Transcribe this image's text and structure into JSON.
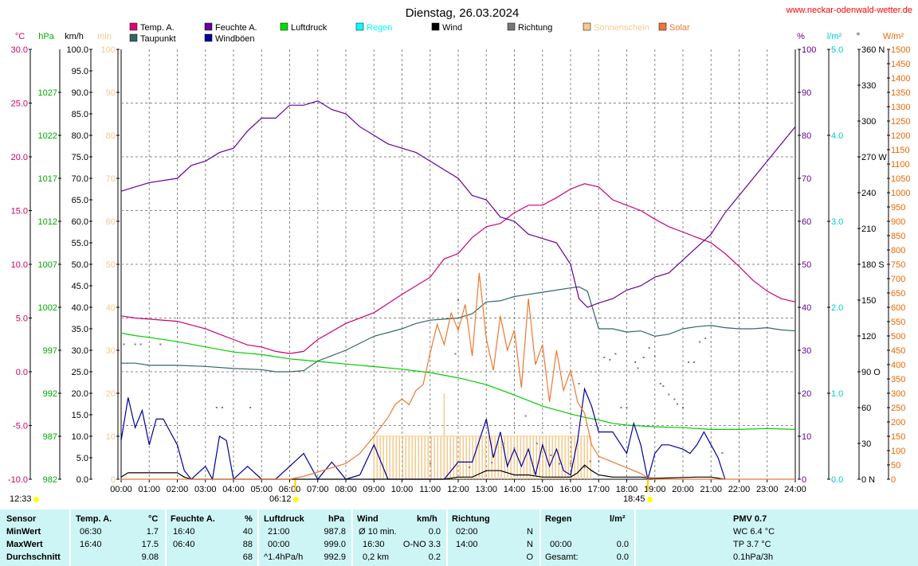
{
  "site": "www.neckar-odenwald-wetter.de",
  "chart_data": {
    "type": "line",
    "title": "Dienstag, 26.03.2024",
    "x_ticks": [
      "00:00",
      "01:00",
      "02:00",
      "03:00",
      "04:00",
      "05:00",
      "06:00",
      "07:00",
      "08:00",
      "09:00",
      "10:00",
      "11:00",
      "12:00",
      "13:00",
      "14:00",
      "15:00",
      "16:00",
      "17:00",
      "18:00",
      "19:00",
      "20:00",
      "21:00",
      "22:00",
      "23:00",
      "24:00"
    ],
    "axes": {
      "temp": {
        "unit": "°C",
        "color": "#cc0066",
        "ticks": [
          "30.0",
          "25.0",
          "20.0",
          "15.0",
          "10.0",
          "5.0",
          "0.0",
          "-5.0",
          "-10.0"
        ],
        "range": [
          -10,
          30
        ]
      },
      "pressure": {
        "unit": "hPa",
        "color": "#00aa00",
        "ticks": [
          "1027",
          "1022",
          "1017",
          "1012",
          "1007",
          "1002",
          "997",
          "992",
          "987",
          "982"
        ],
        "range": [
          982,
          1032
        ]
      },
      "wind": {
        "unit": "km/h",
        "color": "#000000",
        "ticks": [
          "100.0",
          "95.0",
          "90.0",
          "85.0",
          "80.0",
          "75.0",
          "70.0",
          "65.0",
          "60.0",
          "55.0",
          "50.0",
          "45.0",
          "40.0",
          "35.0",
          "30.0",
          "25.0",
          "20.0",
          "15.0",
          "10.0",
          "5.0",
          "0.0"
        ],
        "range": [
          0,
          100
        ]
      },
      "sunshine": {
        "unit": "min",
        "color": "#f5c98a",
        "ticks": [
          "100",
          "90",
          "80",
          "70",
          "60",
          "50",
          "40",
          "30",
          "20",
          "10",
          "0"
        ],
        "range": [
          0,
          100
        ]
      },
      "humidity": {
        "unit": "%",
        "color": "#660099",
        "ticks": [
          "100",
          "90",
          "80",
          "70",
          "60",
          "50",
          "40",
          "30",
          "20",
          "10",
          "0"
        ],
        "range": [
          0,
          100
        ]
      },
      "rain": {
        "unit": "l/m²",
        "color": "#00cccc",
        "ticks": [
          "5.0",
          "4.0",
          "3.0",
          "2.0",
          "1.0",
          "0.0"
        ],
        "range": [
          0,
          5
        ]
      },
      "direction": {
        "unit": "°",
        "color": "#000000",
        "ticks": [
          "360 N",
          "330",
          "300",
          "270 W",
          "240",
          "210",
          "180 S",
          "150",
          "120",
          "90 O",
          "60",
          "30",
          "0 N"
        ],
        "range": [
          0,
          360
        ]
      },
      "solar": {
        "unit": "W/m²",
        "color": "#ee6600",
        "ticks": [
          "1500",
          "1450",
          "1400",
          "1350",
          "1300",
          "1250",
          "1200",
          "1150",
          "1100",
          "1050",
          "1000",
          "950",
          "900",
          "850",
          "800",
          "750",
          "700",
          "650",
          "600",
          "550",
          "500",
          "450",
          "400",
          "350",
          "300",
          "250",
          "200",
          "150",
          "100",
          "50",
          "0"
        ],
        "range": [
          0,
          1500
        ]
      }
    },
    "legend": [
      {
        "name": "Temp. A.",
        "color": "#dd0077"
      },
      {
        "name": "Taupunkt",
        "color": "#336666"
      },
      {
        "name": "Feuchte A.",
        "color": "#660099"
      },
      {
        "name": "Windböen",
        "color": "#000099"
      },
      {
        "name": "Luftdruck",
        "color": "#00dd00"
      },
      {
        "name": "Regen",
        "color": "#00ffff"
      },
      {
        "name": "Wind",
        "color": "#000000"
      },
      {
        "name": "Richtung",
        "color": "#777777"
      },
      {
        "name": "Sonnenschein",
        "color": "#f5c98a"
      },
      {
        "name": "Solar",
        "color": "#ee7733"
      }
    ],
    "series": [
      {
        "name": "Temp. A.",
        "axis": "temp",
        "color": "#cc0077",
        "x": [
          0,
          0.5,
          1,
          2,
          3,
          3.5,
          4,
          4.5,
          5,
          5.5,
          6,
          6.5,
          7,
          8,
          9,
          10,
          11,
          11.5,
          12,
          12.5,
          13,
          13.5,
          14,
          14.5,
          15,
          15.5,
          16,
          16.5,
          17,
          17.5,
          18,
          18.5,
          19,
          19.5,
          20,
          20.5,
          21,
          21.5,
          22,
          22.5,
          23,
          23.5,
          24
        ],
        "y": [
          5.2,
          5.0,
          4.9,
          4.7,
          4.0,
          3.5,
          3.0,
          2.5,
          2.3,
          1.9,
          1.7,
          1.9,
          3.0,
          4.5,
          5.5,
          7.2,
          8.8,
          10.5,
          11.0,
          12.5,
          13.5,
          13.8,
          14.8,
          15.5,
          15.5,
          16.2,
          17.0,
          17.5,
          17.2,
          16.0,
          15.5,
          15.0,
          14.2,
          13.5,
          13.0,
          12.5,
          12.0,
          11.0,
          9.8,
          8.5,
          7.5,
          6.8,
          6.5
        ]
      },
      {
        "name": "Taupunkt",
        "axis": "temp",
        "color": "#336666",
        "x": [
          0,
          0.5,
          1,
          2,
          3,
          4,
          5,
          5.5,
          6,
          6.5,
          7,
          7.5,
          8,
          9,
          10,
          10.5,
          11,
          11.5,
          12,
          12.5,
          13,
          13.5,
          14,
          14.5,
          15,
          15.5,
          16,
          16.3,
          16.6,
          17,
          17.5,
          18,
          18.5,
          19,
          19.5,
          20,
          20.5,
          21,
          21.5,
          22,
          22.5,
          23,
          23.5,
          24
        ],
        "y": [
          0.8,
          0.8,
          0.6,
          0.6,
          0.5,
          0.3,
          0.2,
          0.0,
          0.0,
          0.1,
          1.0,
          1.5,
          2.0,
          3.3,
          4.0,
          4.5,
          4.8,
          4.9,
          5.0,
          5.4,
          6.5,
          6.6,
          7.0,
          7.2,
          7.4,
          7.6,
          7.8,
          7.9,
          7.5,
          4.0,
          4.0,
          3.7,
          3.8,
          3.3,
          3.5,
          4.0,
          4.2,
          4.3,
          4.1,
          4.0,
          4.0,
          4.1,
          3.9,
          3.8
        ]
      },
      {
        "name": "Feuchte A.",
        "axis": "humidity",
        "color": "#660099",
        "x": [
          0,
          0.5,
          1,
          2,
          2.5,
          3,
          3.5,
          4,
          4.5,
          5,
          5.5,
          6,
          6.5,
          7,
          7.5,
          8,
          8.5,
          9,
          9.5,
          10,
          10.5,
          11,
          11.5,
          12,
          12.5,
          13,
          13.5,
          14,
          14.5,
          15,
          15.5,
          16,
          16.3,
          16.6,
          17,
          17.5,
          18,
          18.5,
          19,
          19.5,
          20,
          20.5,
          21,
          21.5,
          22,
          22.5,
          23,
          23.5,
          24
        ],
        "y": [
          67,
          68,
          69,
          70,
          73,
          74,
          76,
          77,
          81,
          84,
          84,
          87,
          87,
          88,
          86,
          85,
          82,
          80,
          78,
          77,
          76,
          74,
          72,
          70,
          66,
          65,
          61,
          60,
          57,
          56,
          55,
          50,
          42,
          40,
          41,
          42,
          44,
          45,
          47,
          48,
          51,
          54,
          57,
          62,
          66,
          70,
          74,
          78,
          82
        ]
      },
      {
        "name": "Luftdruck",
        "axis": "pressure",
        "color": "#00cc00",
        "x": [
          0,
          0.5,
          1,
          2,
          3,
          4,
          5,
          6,
          7,
          8,
          9,
          10,
          11,
          12,
          13,
          14,
          15,
          16,
          16.5,
          17,
          17.5,
          18,
          18.5,
          19,
          20,
          21,
          22,
          23,
          24
        ],
        "y": [
          999.0,
          998.7,
          998.5,
          998.0,
          997.4,
          996.8,
          996.5,
          996.0,
          995.7,
          995.4,
          995.1,
          994.8,
          994.4,
          993.8,
          993.0,
          991.8,
          990.5,
          989.6,
          989.2,
          988.9,
          988.5,
          988.3,
          988.2,
          988.1,
          988.0,
          987.8,
          987.8,
          987.9,
          987.8
        ]
      },
      {
        "name": "Windböen",
        "axis": "wind",
        "color": "#000099",
        "x": [
          0,
          0.25,
          0.5,
          0.75,
          1,
          1.25,
          1.5,
          1.75,
          2,
          2.25,
          2.5,
          3,
          3.25,
          3.5,
          3.75,
          4,
          4.5,
          5,
          5.5,
          6,
          6.5,
          7,
          7.5,
          8,
          8.5,
          9,
          9.5,
          10,
          10.5,
          11,
          11.5,
          12,
          12.5,
          13,
          13.25,
          13.5,
          13.75,
          14,
          14.25,
          14.5,
          14.75,
          15,
          15.25,
          15.5,
          15.75,
          16,
          16.25,
          16.5,
          16.75,
          17,
          17.5,
          18,
          18.25,
          18.5,
          18.75,
          19,
          19.25,
          19.5,
          20,
          20.25,
          20.5,
          20.75,
          21,
          21.25,
          21.5
        ],
        "y": [
          9,
          19,
          12,
          16,
          8,
          14,
          14,
          11,
          8,
          2,
          0,
          3,
          0,
          10,
          9,
          0,
          3,
          0,
          0,
          3,
          6,
          0,
          4,
          0,
          1,
          8,
          0,
          0,
          0,
          0,
          0,
          4,
          4,
          14,
          5,
          11,
          3,
          7,
          3,
          7,
          1,
          8,
          3,
          7,
          2,
          1,
          9,
          21,
          17,
          11,
          11,
          6,
          13,
          8,
          0,
          6,
          8,
          8,
          7,
          6,
          8,
          11,
          8,
          5,
          0
        ]
      },
      {
        "name": "Wind",
        "axis": "wind",
        "color": "#000000",
        "x": [
          0,
          0.25,
          0.5,
          1,
          1.5,
          2,
          2.25,
          2.5,
          3,
          3.5,
          4,
          4.5,
          5,
          5.5,
          6,
          6.5,
          7,
          7.5,
          8,
          8.5,
          9,
          9.5,
          10,
          10.5,
          11,
          11.5,
          12,
          12.5,
          13,
          13.5,
          14,
          14.5,
          15,
          15.5,
          16,
          16.25,
          16.5,
          16.75,
          17,
          17.5,
          18,
          18.5,
          19,
          19.5,
          20,
          20.5,
          21,
          21.5
        ],
        "y": [
          0.5,
          1.5,
          1.5,
          1.5,
          1.5,
          1.5,
          0.5,
          0,
          0,
          0,
          0,
          0,
          0,
          0,
          0,
          0,
          0,
          0,
          0,
          0,
          0,
          0,
          0,
          0,
          0,
          0,
          0.5,
          0.5,
          2,
          2,
          1,
          1,
          0.5,
          0.5,
          0.5,
          1.5,
          3.3,
          2,
          1,
          0.5,
          0.5,
          0.5,
          0.2,
          0.3,
          0.4,
          0.5,
          0.5,
          0
        ]
      },
      {
        "name": "Solar",
        "axis": "solar",
        "color": "#ee7733",
        "x": [
          0,
          6,
          6.5,
          7,
          7.5,
          8,
          8.5,
          9,
          9.5,
          9.75,
          10,
          10.25,
          10.5,
          10.75,
          11,
          11.25,
          11.5,
          11.75,
          12,
          12.25,
          12.5,
          12.75,
          13,
          13.25,
          13.5,
          13.75,
          14,
          14.25,
          14.5,
          14.75,
          15,
          15.25,
          15.5,
          15.75,
          16,
          16.25,
          16.5,
          16.75,
          17,
          17.5,
          18,
          18.5,
          18.75,
          19,
          24
        ],
        "y": [
          0,
          0,
          10,
          25,
          40,
          55,
          90,
          150,
          215,
          260,
          280,
          260,
          310,
          330,
          440,
          540,
          470,
          580,
          520,
          610,
          430,
          720,
          490,
          380,
          570,
          450,
          520,
          320,
          630,
          400,
          470,
          270,
          450,
          310,
          380,
          270,
          230,
          120,
          80,
          60,
          40,
          20,
          5,
          0,
          0
        ]
      }
    ],
    "sunshine_hours": [
      9,
      9.25,
      9.5,
      9.75,
      10,
      10.25,
      10.5,
      10.75,
      11,
      11.25,
      11.5,
      12,
      12.25,
      12.5,
      12.75,
      13,
      13.25,
      13.5,
      13.75,
      14,
      14.25,
      14.5,
      14.75,
      15,
      15.25,
      15.5,
      15.75,
      16,
      16.25,
      16.5
    ],
    "sunshine_min": 10,
    "direction_points": [
      [
        0.1,
        113
      ],
      [
        0.5,
        113
      ],
      [
        0.7,
        113
      ],
      [
        1.4,
        113
      ],
      [
        3.4,
        60
      ],
      [
        3.6,
        60
      ],
      [
        4.6,
        60
      ],
      [
        11,
        13
      ],
      [
        11.9,
        105
      ],
      [
        12,
        150
      ],
      [
        12.4,
        10
      ],
      [
        13.2,
        14
      ],
      [
        13.6,
        30
      ],
      [
        14,
        26
      ],
      [
        14.4,
        53
      ],
      [
        14.8,
        30
      ],
      [
        15.3,
        20
      ],
      [
        15.6,
        13
      ],
      [
        16,
        13
      ],
      [
        16.3,
        80
      ],
      [
        16.5,
        10
      ],
      [
        16.7,
        15
      ],
      [
        17,
        15
      ],
      [
        17.2,
        102
      ],
      [
        17.4,
        100
      ],
      [
        17.6,
        105
      ],
      [
        17.8,
        60
      ],
      [
        18,
        60
      ],
      [
        18.3,
        98
      ],
      [
        18.4,
        93
      ],
      [
        18.6,
        102
      ],
      [
        18.8,
        110
      ],
      [
        19,
        103
      ],
      [
        19.2,
        80
      ],
      [
        19.3,
        78
      ],
      [
        19.5,
        71
      ],
      [
        19.7,
        67
      ],
      [
        19.8,
        63
      ],
      [
        20,
        60
      ],
      [
        20.2,
        98
      ],
      [
        20.4,
        98
      ],
      [
        20.6,
        115
      ],
      [
        20.8,
        118
      ],
      [
        21.4,
        22
      ]
    ],
    "sunrise": "06:12",
    "sunset": "18:45",
    "left_time": "12:33"
  },
  "table": {
    "headers": {
      "sensor": "Sensor",
      "temp": "Temp. A.",
      "temp_unit": "°C",
      "hum": "Feuchte A.",
      "hum_unit": "%",
      "press": "Luftdruck",
      "press_unit": "hPa",
      "wind": "Wind",
      "wind_unit": "km/h",
      "dir": "Richtung",
      "rain": "Regen",
      "rain_unit": "l/m²",
      "pmv": "PMV 0.7"
    },
    "rows": [
      {
        "label": "MinWert",
        "temp_t": "06:30",
        "temp_v": "1.7",
        "hum_t": "16:40",
        "hum_v": "40",
        "press_t": "21:00",
        "press_v": "987.8",
        "wind_t": "Ø 10 min.",
        "wind_v": "0.0",
        "dir_t": "02:00",
        "dir_v": "N",
        "rain_t": "",
        "rain_v": "",
        "extra": "WC 6.4 °C"
      },
      {
        "label": "MaxWert",
        "temp_t": "16:40",
        "temp_v": "17.5",
        "hum_t": "06:40",
        "hum_v": "88",
        "press_t": "00:00",
        "press_v": "999.0",
        "wind_t": "16:30",
        "wind_v": "O-NO 3.3",
        "dir_t": "14:00",
        "dir_v": "N",
        "rain_t": "00:00",
        "rain_v": "0.0",
        "extra": "TP 3.7 °C"
      },
      {
        "label": "Durchschnitt",
        "temp_t": "",
        "temp_v": "9.08",
        "hum_t": "",
        "hum_v": "68",
        "press_t": "^1.4hPa/h",
        "press_v": "992.9",
        "wind_t": "0,2 km",
        "wind_v": "0.2",
        "dir_t": "",
        "dir_v": "O",
        "rain_t": "Gesamt:",
        "rain_v": "0.0",
        "extra": "0.1hPa/3h"
      }
    ]
  }
}
